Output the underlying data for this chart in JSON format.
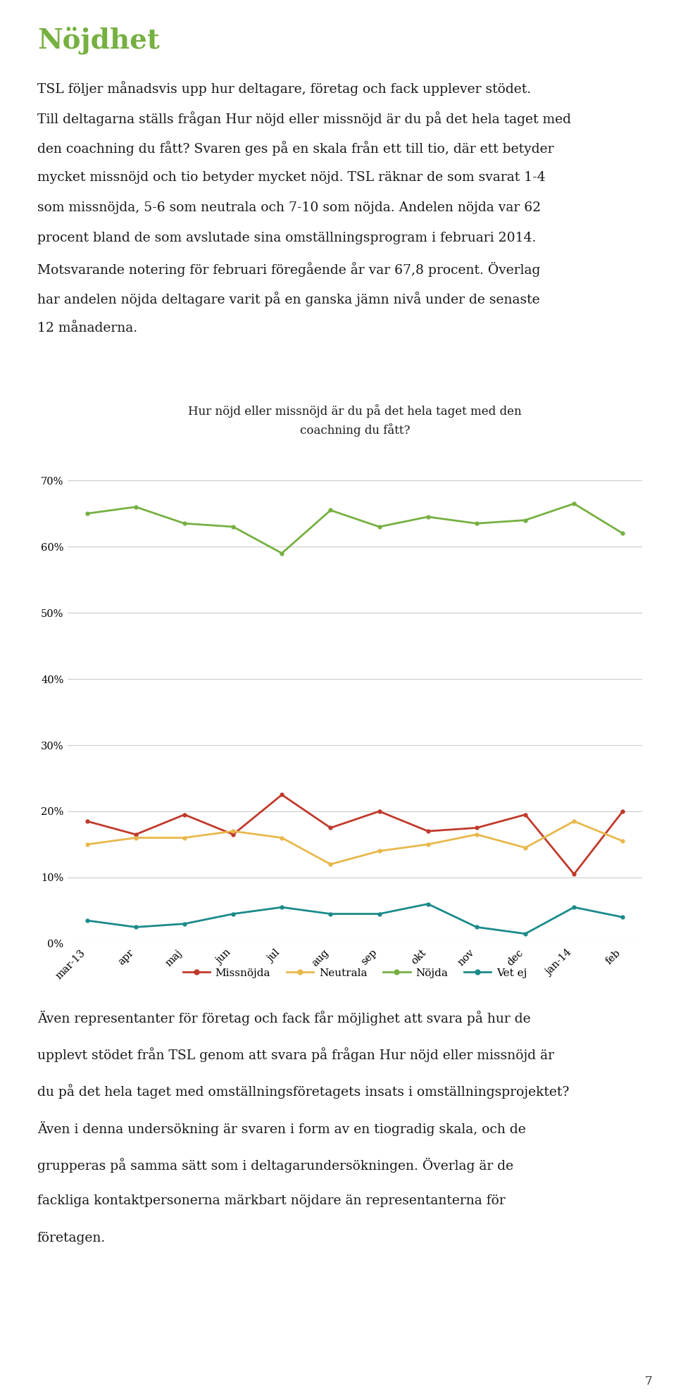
{
  "title": "Nöjdhet",
  "title_color": "#76b041",
  "chart_title_line1": "Hur nöjd eller missnöjd är du på det hela taget med den",
  "chart_title_line2": "coachning du fått?",
  "x_labels": [
    "mar-13",
    "apr",
    "maj",
    "jun",
    "jul",
    "aug",
    "sep",
    "okt",
    "nov",
    "dec",
    "jan-14",
    "feb"
  ],
  "missnojda": [
    18.5,
    16.5,
    19.5,
    16.5,
    22.5,
    17.5,
    20.0,
    17.0,
    17.5,
    19.5,
    10.5,
    20.0
  ],
  "neutrala": [
    15.0,
    16.0,
    16.0,
    17.0,
    16.0,
    12.0,
    14.0,
    15.0,
    16.5,
    14.5,
    18.5,
    15.5
  ],
  "nojda": [
    65.0,
    66.0,
    63.5,
    63.0,
    59.0,
    65.5,
    63.0,
    64.5,
    63.5,
    64.0,
    66.5,
    62.0
  ],
  "vet_ej": [
    3.5,
    2.5,
    3.0,
    4.5,
    5.5,
    4.5,
    4.5,
    6.0,
    2.5,
    1.5,
    5.5,
    4.0
  ],
  "colors": {
    "missnojda": "#c0392b",
    "neutrala": "#e8b84b",
    "nojda": "#76b041",
    "vet_ej": "#1a8a8a"
  },
  "legend_labels": [
    "Missnöjda",
    "Neutrala",
    "Nöjda",
    "Vet ej"
  ],
  "ylim": [
    0,
    75
  ],
  "yticks": [
    0,
    10,
    20,
    30,
    40,
    50,
    60,
    70
  ],
  "ytick_labels": [
    "0%",
    "10%",
    "20%",
    "30%",
    "40%",
    "50%",
    "60%",
    "70%"
  ],
  "background_color": "#ffffff",
  "text_color": "#1a1a1a",
  "grid_color": "#cccccc",
  "line_width": 2.0
}
